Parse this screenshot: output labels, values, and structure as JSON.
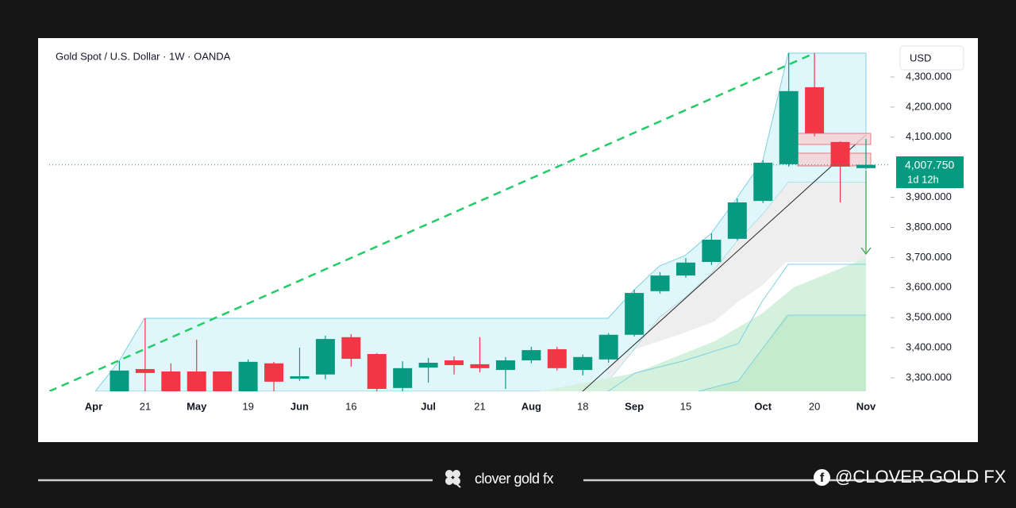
{
  "chart_data": {
    "type": "candlestick",
    "title": "Gold Spot / U.S. Dollar · 1W · OANDA",
    "currency": "USD",
    "categories": [
      "Apr",
      null,
      "21",
      null,
      "May",
      null,
      "19",
      null,
      "Jun",
      null,
      "16",
      null,
      null,
      "Jul",
      null,
      "21",
      null,
      "Aug",
      null,
      "18",
      null,
      "Sep",
      null,
      "15",
      null,
      null,
      "Oct",
      null,
      "20",
      null,
      "Nov"
    ],
    "open": [
      null,
      3250,
      3329,
      3321,
      3321,
      3321,
      3250,
      3348,
      3297,
      3311,
      3435,
      3379,
      3266,
      3334,
      3358,
      3345,
      3326,
      3358,
      3395,
      3326,
      3361,
      3443,
      3588,
      3640,
      3685,
      3762,
      3888,
      4010,
      4266,
      4084,
      3997
    ],
    "high": [
      null,
      3355,
      3498,
      3348,
      3427,
      3321,
      3361,
      3353,
      3400,
      3440,
      3445,
      3382,
      3355,
      3366,
      3371,
      3435,
      3369,
      3403,
      3403,
      3377,
      3448,
      3593,
      3651,
      3698,
      3780,
      3896,
      4023,
      4380,
      4380,
      4086,
      4094
    ],
    "low": [
      null,
      3230,
      3240,
      3230,
      3230,
      3230,
      3240,
      3255,
      3290,
      3295,
      3337,
      3255,
      3255,
      3284,
      3311,
      3318,
      3263,
      3348,
      3324,
      3308,
      3350,
      3437,
      3580,
      3633,
      3675,
      3757,
      3881,
      4002,
      4103,
      3883,
      3994
    ],
    "close": [
      null,
      3324,
      3316,
      3245,
      3245,
      3240,
      3353,
      3287,
      3305,
      3429,
      3363,
      3263,
      3332,
      3350,
      3342,
      3332,
      3358,
      3392,
      3332,
      3369,
      3443,
      3582,
      3640,
      3683,
      3759,
      3883,
      4015,
      4253,
      4113,
      4002,
      4008
    ],
    "up_color": "#089981",
    "down_color": "#f23645",
    "ylim": [
      3255,
      4424
    ],
    "yticks": [
      {
        "value": 3300,
        "label": "3,300.000"
      },
      {
        "value": 3400,
        "label": "3,400.000"
      },
      {
        "value": 3500,
        "label": "3,500.000"
      },
      {
        "value": 3600,
        "label": "3,600.000"
      },
      {
        "value": 3700,
        "label": "3,700.000"
      },
      {
        "value": 3800,
        "label": "3,800.000"
      },
      {
        "value": 3900,
        "label": "3,900.000"
      },
      {
        "value": 4100,
        "label": "4,100.000"
      },
      {
        "value": 4200,
        "label": "4,200.000"
      },
      {
        "value": 4300,
        "label": "4,300.000"
      }
    ],
    "last_price": {
      "value": 4007.75,
      "label": "4,007.750"
    },
    "countdown": "1d 12h"
  },
  "footer": {
    "brand": "clover gold fx",
    "handle": "@CLOVER GOLD FX"
  }
}
